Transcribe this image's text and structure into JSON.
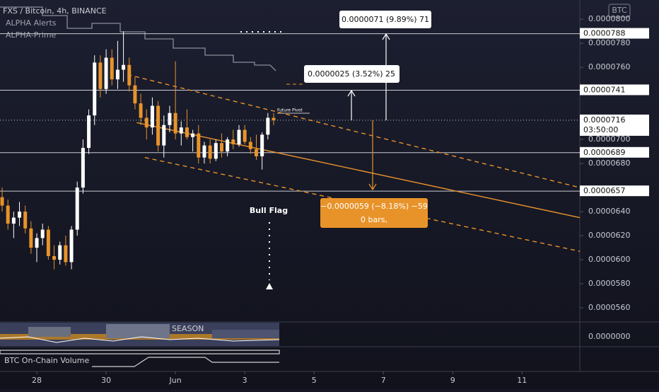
{
  "chart_data": {
    "type": "candlestick",
    "title": "FXS / Bitcoin, 4h, BINANCE",
    "indicators": [
      "ALPHA Alerts",
      "ALPHA-Prime"
    ],
    "currency_button": "BTC",
    "up_color": "#ffffff",
    "down_color": "#e8932a",
    "candles": {
      "open": [
        6.52e-05,
        6.45e-05,
        6.3e-05,
        6.35e-05,
        6.4e-05,
        6.26e-05,
        6.1e-05,
        6.18e-05,
        6.25e-05,
        6.03e-05,
        6e-05,
        6.12e-05,
        5.98e-05,
        6.25e-05,
        6.6e-05,
        6.93e-05,
        7.2e-05,
        7.64e-05,
        7.42e-05,
        7.68e-05,
        7.5e-05,
        7.58e-05,
        7.62e-05,
        7.45e-05,
        7.3e-05,
        7.18e-05,
        7.1e-05,
        7.28e-05,
        6.95e-05,
        7.12e-05,
        7.22e-05,
        7.05e-05,
        7.1e-05,
        7.02e-05,
        7.05e-05,
        6.85e-05,
        6.95e-05,
        6.84e-05,
        6.97e-05,
        6.9e-05,
        7e-05,
        6.96e-05,
        7.08e-05,
        6.98e-05,
        6.92e-05,
        6.86e-05,
        7.04e-05,
        7.18e-05
      ],
      "high": [
        6.6e-05,
        6.5e-05,
        6.4e-05,
        6.48e-05,
        6.45e-05,
        6.32e-05,
        6.22e-05,
        6.3e-05,
        6.28e-05,
        6.12e-05,
        6.15e-05,
        6.2e-05,
        6.28e-05,
        6.65e-05,
        7e-05,
        7.25e-05,
        7.7e-05,
        7.7e-05,
        7.75e-05,
        7.75e-05,
        7.82e-05,
        7.9e-05,
        7.68e-05,
        7.52e-05,
        7.38e-05,
        7.25e-05,
        7.35e-05,
        7.32e-05,
        7.2e-05,
        7.28e-05,
        7.65e-05,
        7.15e-05,
        7.25e-05,
        7.08e-05,
        7.12e-05,
        6.98e-05,
        7e-05,
        7e-05,
        7.05e-05,
        7.02e-05,
        7.08e-05,
        7.12e-05,
        7.12e-05,
        7.02e-05,
        7.04e-05,
        7.06e-05,
        7.22e-05,
        7.22e-05
      ],
      "low": [
        6.4e-05,
        6.25e-05,
        6.18e-05,
        6.28e-05,
        6.22e-05,
        6.05e-05,
        5.98e-05,
        6.12e-05,
        6e-05,
        5.92e-05,
        5.96e-05,
        5.95e-05,
        5.92e-05,
        6.2e-05,
        6.55e-05,
        6.88e-05,
        7.12e-05,
        7.35e-05,
        7.38e-05,
        7.45e-05,
        7.42e-05,
        7.48e-05,
        7.4e-05,
        7.25e-05,
        7.12e-05,
        7e-05,
        7.04e-05,
        6.9e-05,
        6.85e-05,
        7.06e-05,
        7e-05,
        6.95e-05,
        7e-05,
        6.9e-05,
        6.8e-05,
        6.8e-05,
        6.8e-05,
        6.82e-05,
        6.85e-05,
        6.86e-05,
        6.92e-05,
        6.94e-05,
        6.96e-05,
        6.88e-05,
        6.83e-05,
        6.75e-05,
        7e-05,
        7.12e-05
      ],
      "close": [
        6.45e-05,
        6.3e-05,
        6.35e-05,
        6.4e-05,
        6.26e-05,
        6.1e-05,
        6.18e-05,
        6.25e-05,
        6.03e-05,
        6e-05,
        6.12e-05,
        5.98e-05,
        6.25e-05,
        6.6e-05,
        6.93e-05,
        7.2e-05,
        7.64e-05,
        7.42e-05,
        7.68e-05,
        7.5e-05,
        7.58e-05,
        7.62e-05,
        7.45e-05,
        7.3e-05,
        7.18e-05,
        7.1e-05,
        7.28e-05,
        6.95e-05,
        7.12e-05,
        7.22e-05,
        7.05e-05,
        7.1e-05,
        7.02e-05,
        7.05e-05,
        6.85e-05,
        6.95e-05,
        6.84e-05,
        6.97e-05,
        6.9e-05,
        7e-05,
        6.96e-05,
        7.08e-05,
        6.98e-05,
        6.92e-05,
        6.86e-05,
        7.04e-05,
        7.18e-05,
        7.16e-05
      ]
    },
    "xlim": [
      -0.37,
      100
    ],
    "xticks": [
      {
        "value": 6,
        "label": "28"
      },
      {
        "value": 18,
        "label": "30"
      },
      {
        "value": 30,
        "label": "Jun"
      },
      {
        "value": 42,
        "label": "3"
      },
      {
        "value": 54,
        "label": "5"
      },
      {
        "value": 66,
        "label": "7"
      },
      {
        "value": 78,
        "label": "9"
      },
      {
        "value": 90,
        "label": "11"
      }
    ],
    "ylim": [
      5.5e-05,
      8.16e-05
    ],
    "yticks": [
      {
        "value": 8e-05,
        "label": "0.0000800"
      },
      {
        "value": 7.8e-05,
        "label": "0.0000780"
      },
      {
        "value": 7.6e-05,
        "label": "0.0000760"
      },
      {
        "value": 7e-05,
        "label": "0.0000700"
      },
      {
        "value": 6.8e-05,
        "label": "0.0000680"
      },
      {
        "value": 6.4e-05,
        "label": "0.0000640"
      },
      {
        "value": 6.2e-05,
        "label": "0.0000620"
      },
      {
        "value": 6e-05,
        "label": "0.0000600"
      },
      {
        "value": 5.8e-05,
        "label": "0.0000580"
      },
      {
        "value": 5.6e-05,
        "label": "0.0000560"
      }
    ],
    "price_lines": [
      {
        "value": 7.88e-05,
        "label": "0.0000788"
      },
      {
        "value": 7.41e-05,
        "label": "0.0000741"
      },
      {
        "value": 7.16e-05,
        "label": "0.0000716",
        "countdown": "03:50:00",
        "dotted": true
      },
      {
        "value": 6.89e-05,
        "label": "0.0000689"
      },
      {
        "value": 6.57e-05,
        "label": "0.0000657"
      }
    ],
    "trend_lines": [
      {
        "style": "solid",
        "x": [
          23.3,
          100
        ],
        "y": [
          7.14e-05,
          6.35e-05
        ]
      },
      {
        "style": "dashed",
        "x": [
          21.7,
          100
        ],
        "y": [
          7.54e-05,
          6.6e-05
        ]
      },
      {
        "style": "dashed",
        "x": [
          24.7,
          100
        ],
        "y": [
          6.85e-05,
          6.07e-05
        ]
      }
    ],
    "measures": [
      "0.0000071 (9.89%) 71",
      "0.0000025 (3.52%) 25",
      "−0.0000059 (−8.18%) −59"
    ],
    "measure_bars": "0 bars,",
    "annotations": [
      "Bull Flag",
      "Future Pivot"
    ],
    "pane_texts": [
      "SEASON",
      "BTC On-Chain Volume"
    ],
    "pane_axis_label": "0.0000000"
  }
}
